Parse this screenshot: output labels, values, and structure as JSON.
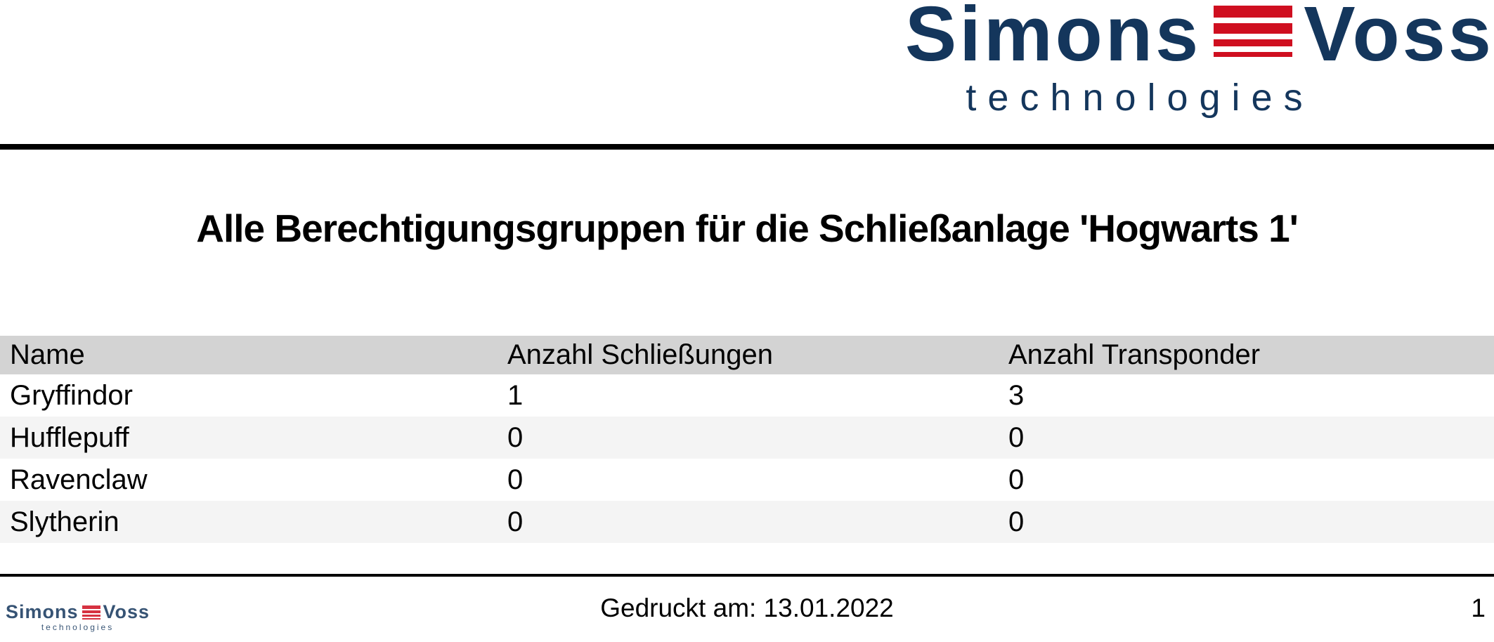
{
  "brand": {
    "wordmark_left": "Simons",
    "wordmark_right": "Voss",
    "subtitle": "technologies",
    "navy": "#14365c",
    "red": "#cf0f20"
  },
  "title": "Alle Berechtigungsgruppen für die Schließanlage 'Hogwarts 1'",
  "table": {
    "columns": [
      "Name",
      "Anzahl Schließungen",
      "Anzahl Transponder"
    ],
    "rows": [
      [
        "Gryffindor",
        "1",
        "3"
      ],
      [
        "Hufflepuff",
        "0",
        "0"
      ],
      [
        "Ravenclaw",
        "0",
        "0"
      ],
      [
        "Slytherin",
        "0",
        "0"
      ]
    ],
    "header_bg": "#d3d3d3",
    "alt_row_bg": "#f4f4f4"
  },
  "footer": {
    "printed_label": "Gedruckt am: 13.01.2022",
    "page_number": "1",
    "logo": {
      "wordmark_left": "Simons",
      "wordmark_right": "Voss",
      "subtitle": "technologies"
    }
  }
}
